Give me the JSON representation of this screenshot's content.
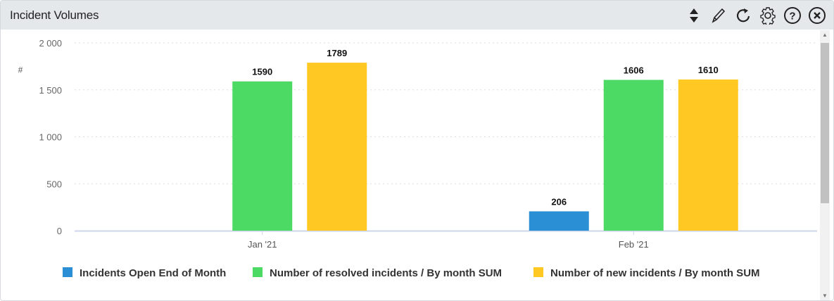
{
  "header": {
    "title": "Incident Volumes",
    "icons": [
      "sort-icon",
      "pencil-icon",
      "refresh-icon",
      "gear-icon",
      "help-icon",
      "close-icon"
    ]
  },
  "chart_data": {
    "type": "bar",
    "title": "",
    "ylabel": "#",
    "ylim": [
      0,
      2000
    ],
    "yticks": [
      "0",
      "500",
      "1 000",
      "1 500",
      "2 000"
    ],
    "ytick_values": [
      0,
      500,
      1000,
      1500,
      2000
    ],
    "categories": [
      "Jan '21",
      "Feb '21"
    ],
    "grid": true,
    "legend": "bottom",
    "series": [
      {
        "name": "Incidents Open End of Month",
        "color": "#2a8fd4",
        "values": [
          null,
          206
        ]
      },
      {
        "name": "Number of resolved incidents / By month SUM",
        "color": "#4cd964",
        "values": [
          1590,
          1606
        ]
      },
      {
        "name": "Number of new incidents / By month SUM",
        "color": "#ffc822",
        "values": [
          1789,
          1610
        ]
      }
    ]
  }
}
